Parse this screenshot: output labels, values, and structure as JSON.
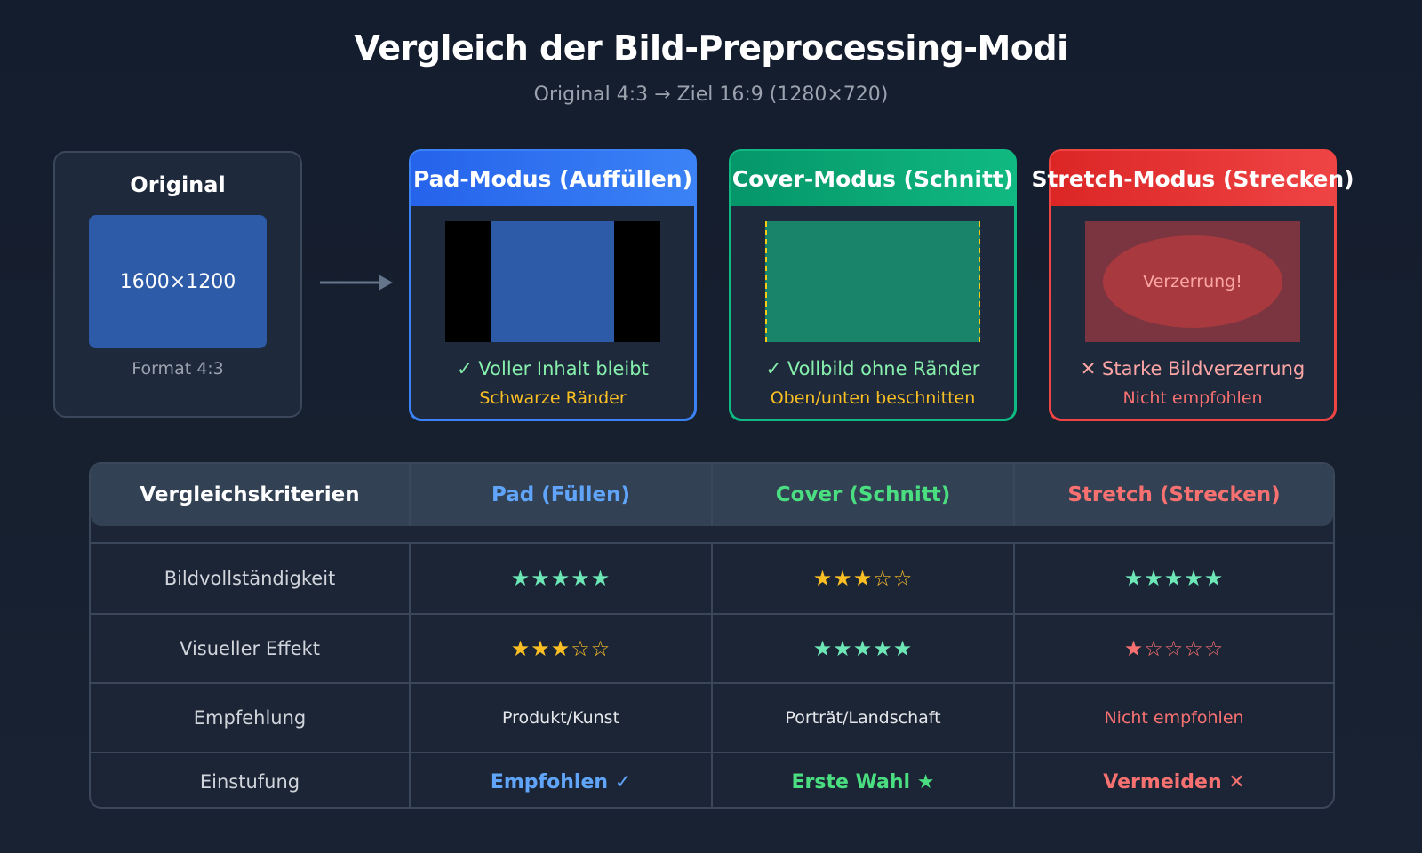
{
  "title": "Vergleich der Bild-Preprocessing-Modi",
  "subtitle": "Original 4:3 → Ziel 16:9 (1280×720)",
  "original": {
    "title": "Original",
    "size_label": "1600×1200",
    "caption": "Format 4:3"
  },
  "modes": {
    "pad": {
      "title": "Pad-Modus (Auffüllen)",
      "line1": "✓ Voller Inhalt bleibt",
      "line2": "Schwarze Ränder"
    },
    "cover": {
      "title": "Cover-Modus (Schnitt)",
      "line1": "✓ Vollbild ohne Ränder",
      "line2": "Oben/unten beschnitten"
    },
    "stretch": {
      "title": "Stretch-Modus (Strecken)",
      "distortion_label": "Verzerrung!",
      "line1": "✕ Starke Bildverzerrung",
      "line2": "Nicht empfohlen"
    }
  },
  "table": {
    "headers": [
      "Vergleichskriterien",
      "Pad (Füllen)",
      "Cover (Schnitt)",
      "Stretch (Strecken)"
    ],
    "rows": [
      {
        "label": "Bildvollständigkeit",
        "pad": "★★★★★",
        "cover": "★★★☆☆",
        "stretch": "★★★★★"
      },
      {
        "label": "Visueller Effekt",
        "pad": "★★★☆☆",
        "cover": "★★★★★",
        "stretch": "★☆☆☆☆"
      },
      {
        "label": "Empfehlung",
        "pad": "Produkt/Kunst",
        "cover": "Porträt/Landschaft",
        "stretch": "Nicht empfohlen"
      },
      {
        "label": "Einstufung",
        "pad": "Empfohlen ✓",
        "cover": "Erste Wahl ★",
        "stretch": "Vermeiden ✕"
      }
    ]
  },
  "colors": {
    "pad": "#3b82f6",
    "cover": "#10b981",
    "stretch": "#ef4444",
    "background": "#141d2e"
  }
}
